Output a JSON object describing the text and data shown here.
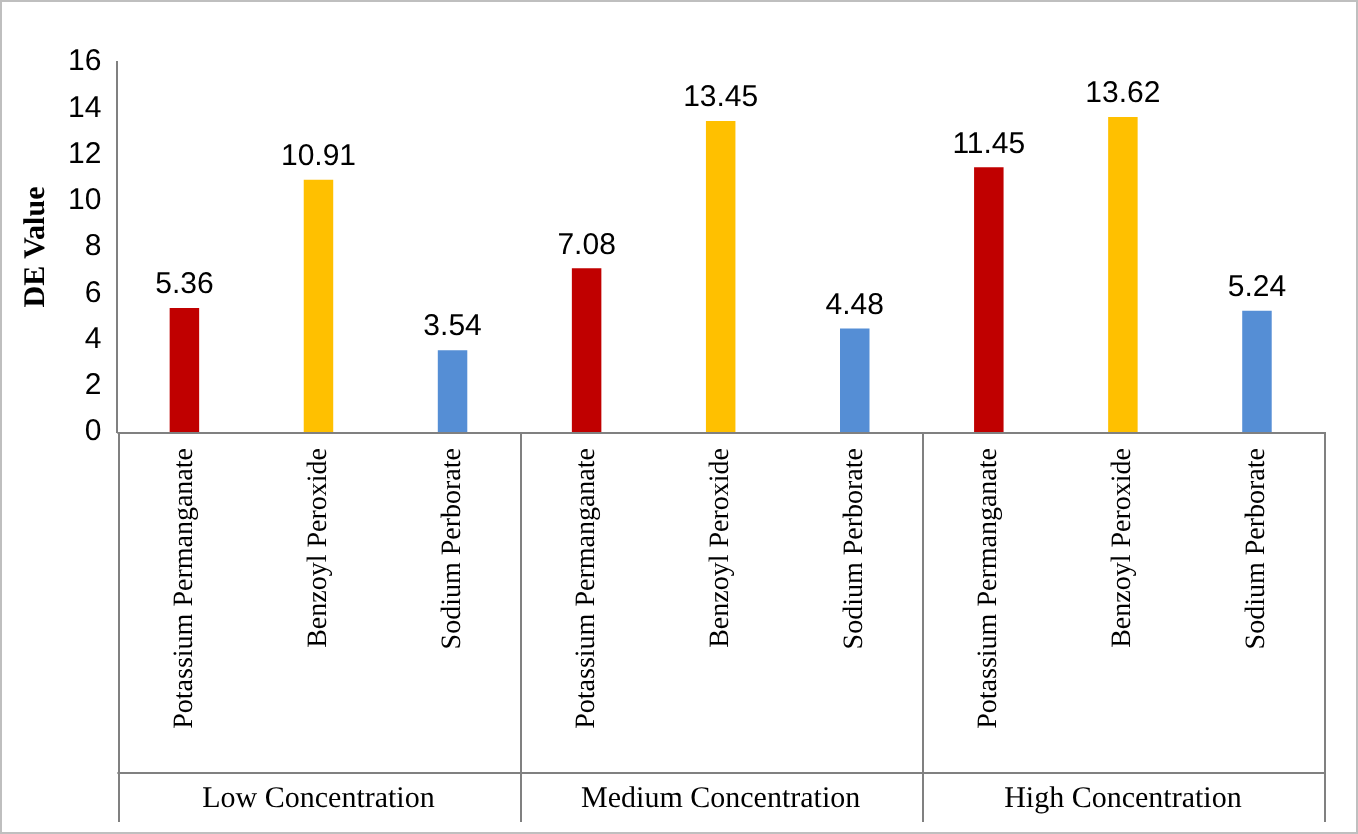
{
  "chart_data": {
    "type": "bar",
    "ylabel": "DE Value",
    "categories": [
      "Potassium Permanganate",
      "Benzoyl Peroxide",
      "Sodium Perborate",
      "Potassium Permanganate",
      "Benzoyl Peroxide",
      "Sodium Perborate",
      "Potassium Permanganate",
      "Benzoyl Peroxide",
      "Sodium Perborate"
    ],
    "values": [
      5.36,
      10.91,
      3.54,
      7.08,
      13.45,
      4.48,
      11.45,
      13.62,
      5.24
    ],
    "colors": [
      "#c00000",
      "#ffc000",
      "#558ed5",
      "#c00000",
      "#ffc000",
      "#558ed5",
      "#c00000",
      "#ffc000",
      "#558ed5"
    ],
    "ylim": [
      0,
      16
    ],
    "yticks": [
      0,
      2,
      4,
      6,
      8,
      10,
      12,
      14,
      16
    ],
    "grid": false,
    "legend": false,
    "data_labels": true,
    "annotations": [
      "Low Concentration",
      "Medium Concentration",
      "High Concentration"
    ]
  }
}
